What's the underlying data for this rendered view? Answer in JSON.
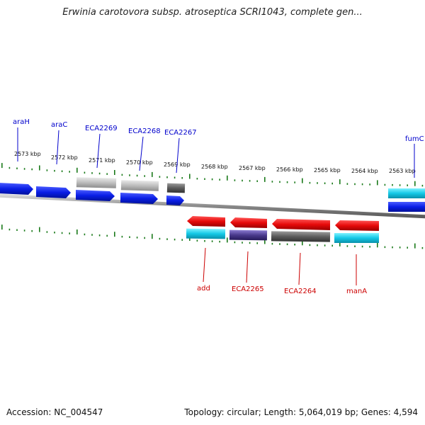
{
  "title": "Erwinia carotovora subsp. atroseptica SCRI1043, complete gen...",
  "footer": {
    "accession": "Accession: NC_004547",
    "summary": "Topology: circular; Length: 5,064,019 bp; Genes: 4,594"
  },
  "colors": {
    "forward_cds": "#0a1ee6",
    "reverse_cds": "#e60a0a",
    "tick": "#1a7a1a",
    "backbone": "#888888",
    "label_forward": "#0000cc",
    "label_reverse": "#cc0000"
  },
  "position_labels": [
    "2573 kbp",
    "2572 kbp",
    "2571 kbp",
    "2570 kbp",
    "2569 kbp",
    "2568 kbp",
    "2567 kbp",
    "2566 kbp",
    "2565 kbp",
    "2564 kbp",
    "2563 kbp"
  ],
  "forward_gene_labels": [
    "araH",
    "araC",
    "ECA2269",
    "ECA2268",
    "ECA2267",
    "fumC"
  ],
  "reverse_gene_labels": [
    "add",
    "ECA2265",
    "ECA2264",
    "manA"
  ]
}
